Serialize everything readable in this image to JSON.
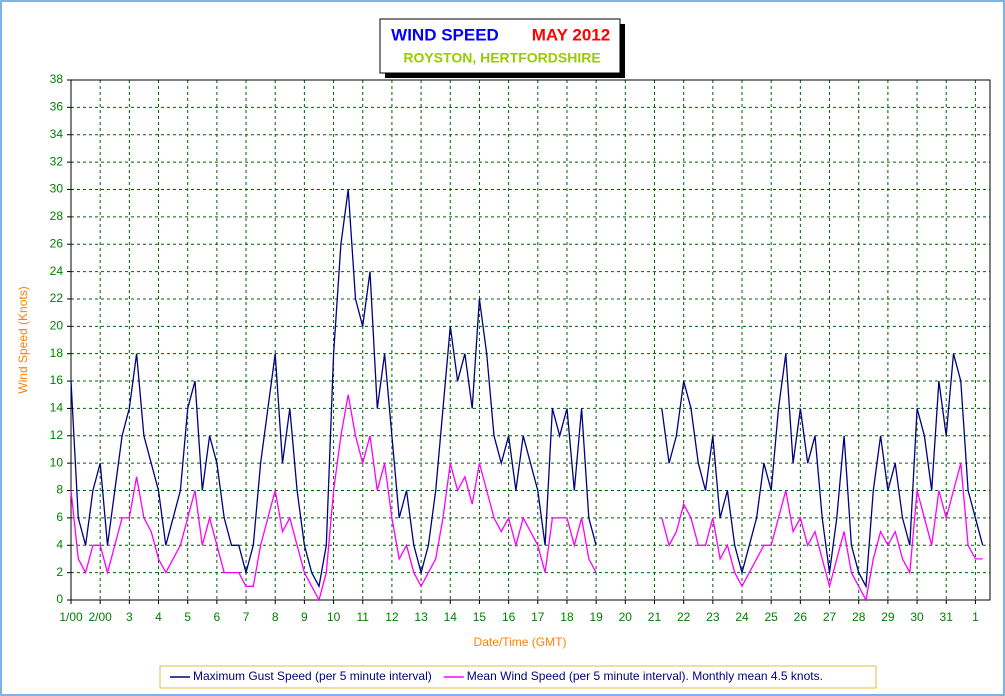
{
  "chart_data": {
    "type": "line",
    "title": "WIND SPEED",
    "title_date": "MAY 2012",
    "subtitle": "ROYSTON, HERTFORDSHIRE",
    "x_label": "Date/Time (GMT)",
    "y_label": "Wind Speed (Knots)",
    "xlim": [
      1,
      32.5
    ],
    "ylim": [
      0,
      38
    ],
    "xticks": [
      {
        "value": 1,
        "label": "1/00"
      },
      {
        "value": 2,
        "label": "2/00"
      },
      3,
      4,
      5,
      6,
      7,
      8,
      9,
      10,
      11,
      12,
      13,
      14,
      15,
      16,
      17,
      18,
      19,
      20,
      21,
      22,
      23,
      24,
      25,
      26,
      27,
      28,
      29,
      30,
      31,
      {
        "value": 32,
        "label": "1"
      }
    ],
    "yticks": [
      0,
      2,
      4,
      6,
      8,
      10,
      12,
      14,
      16,
      18,
      20,
      22,
      24,
      26,
      28,
      30,
      32,
      34,
      36,
      38
    ],
    "grid": true,
    "x": [
      1,
      1.25,
      1.5,
      1.75,
      2,
      2.25,
      2.5,
      2.75,
      3,
      3.25,
      3.5,
      3.75,
      4,
      4.25,
      4.5,
      4.75,
      5,
      5.25,
      5.5,
      5.75,
      6,
      6.25,
      6.5,
      6.75,
      7,
      7.25,
      7.5,
      7.75,
      8,
      8.25,
      8.5,
      8.75,
      9,
      9.25,
      9.5,
      9.75,
      10,
      10.25,
      10.5,
      10.75,
      11,
      11.25,
      11.5,
      11.75,
      12,
      12.25,
      12.5,
      12.75,
      13,
      13.25,
      13.5,
      13.75,
      14,
      14.25,
      14.5,
      14.75,
      15,
      15.25,
      15.5,
      15.75,
      16,
      16.25,
      16.5,
      16.75,
      17,
      17.25,
      17.5,
      17.75,
      18,
      18.25,
      18.5,
      18.75,
      19,
      19.25,
      19.5,
      19.75,
      20,
      20.25,
      20.5,
      20.75,
      21,
      21.25,
      21.5,
      21.75,
      22,
      22.25,
      22.5,
      22.75,
      23,
      23.25,
      23.5,
      23.75,
      24,
      24.25,
      24.5,
      24.75,
      25,
      25.25,
      25.5,
      25.75,
      26,
      26.25,
      26.5,
      26.75,
      27,
      27.25,
      27.5,
      27.75,
      28,
      28.25,
      28.5,
      28.75,
      29,
      29.25,
      29.5,
      29.75,
      30,
      30.25,
      30.5,
      30.75,
      31,
      31.25,
      31.5,
      31.75,
      32,
      32.25
    ],
    "series": [
      {
        "name": "Maximum Gust Speed (per 5 minute interval)",
        "color": "#000080",
        "values": [
          16,
          6,
          4,
          8,
          10,
          4,
          8,
          12,
          14,
          18,
          12,
          10,
          8,
          4,
          6,
          8,
          14,
          16,
          8,
          12,
          10,
          6,
          4,
          4,
          2,
          4,
          10,
          14,
          18,
          10,
          14,
          8,
          4,
          2,
          1,
          4,
          18,
          26,
          30,
          22,
          20,
          24,
          14,
          18,
          12,
          6,
          8,
          4,
          2,
          4,
          8,
          14,
          20,
          16,
          18,
          14,
          22,
          18,
          12,
          10,
          12,
          8,
          12,
          10,
          8,
          4,
          14,
          12,
          14,
          8,
          14,
          6,
          4,
          null,
          null,
          null,
          null,
          null,
          null,
          null,
          null,
          14,
          10,
          12,
          16,
          14,
          10,
          8,
          12,
          6,
          8,
          4,
          2,
          4,
          6,
          10,
          8,
          14,
          18,
          10,
          14,
          10,
          12,
          6,
          2,
          6,
          12,
          4,
          2,
          1,
          8,
          12,
          8,
          10,
          6,
          4,
          14,
          12,
          8,
          16,
          12,
          18,
          16,
          8,
          6,
          4
        ]
      },
      {
        "name": "Mean Wind Speed (per 5 minute interval). Monthly mean 4.5 knots.",
        "color": "#ff00ff",
        "values": [
          8,
          3,
          2,
          4,
          4,
          2,
          4,
          6,
          6,
          9,
          6,
          5,
          3,
          2,
          3,
          4,
          6,
          8,
          4,
          6,
          4,
          2,
          2,
          2,
          1,
          1,
          4,
          6,
          8,
          5,
          6,
          4,
          2,
          1,
          0,
          2,
          8,
          12,
          15,
          12,
          10,
          12,
          8,
          10,
          6,
          3,
          4,
          2,
          1,
          2,
          3,
          6,
          10,
          8,
          9,
          7,
          10,
          8,
          6,
          5,
          6,
          4,
          6,
          5,
          4,
          2,
          6,
          6,
          6,
          4,
          6,
          3,
          2,
          null,
          null,
          null,
          null,
          null,
          null,
          null,
          null,
          6,
          4,
          5,
          7,
          6,
          4,
          4,
          6,
          3,
          4,
          2,
          1,
          2,
          3,
          4,
          4,
          6,
          8,
          5,
          6,
          4,
          5,
          3,
          1,
          3,
          5,
          2,
          1,
          0,
          3,
          5,
          4,
          5,
          3,
          2,
          8,
          6,
          4,
          8,
          6,
          8,
          10,
          4,
          3,
          3
        ]
      }
    ]
  }
}
